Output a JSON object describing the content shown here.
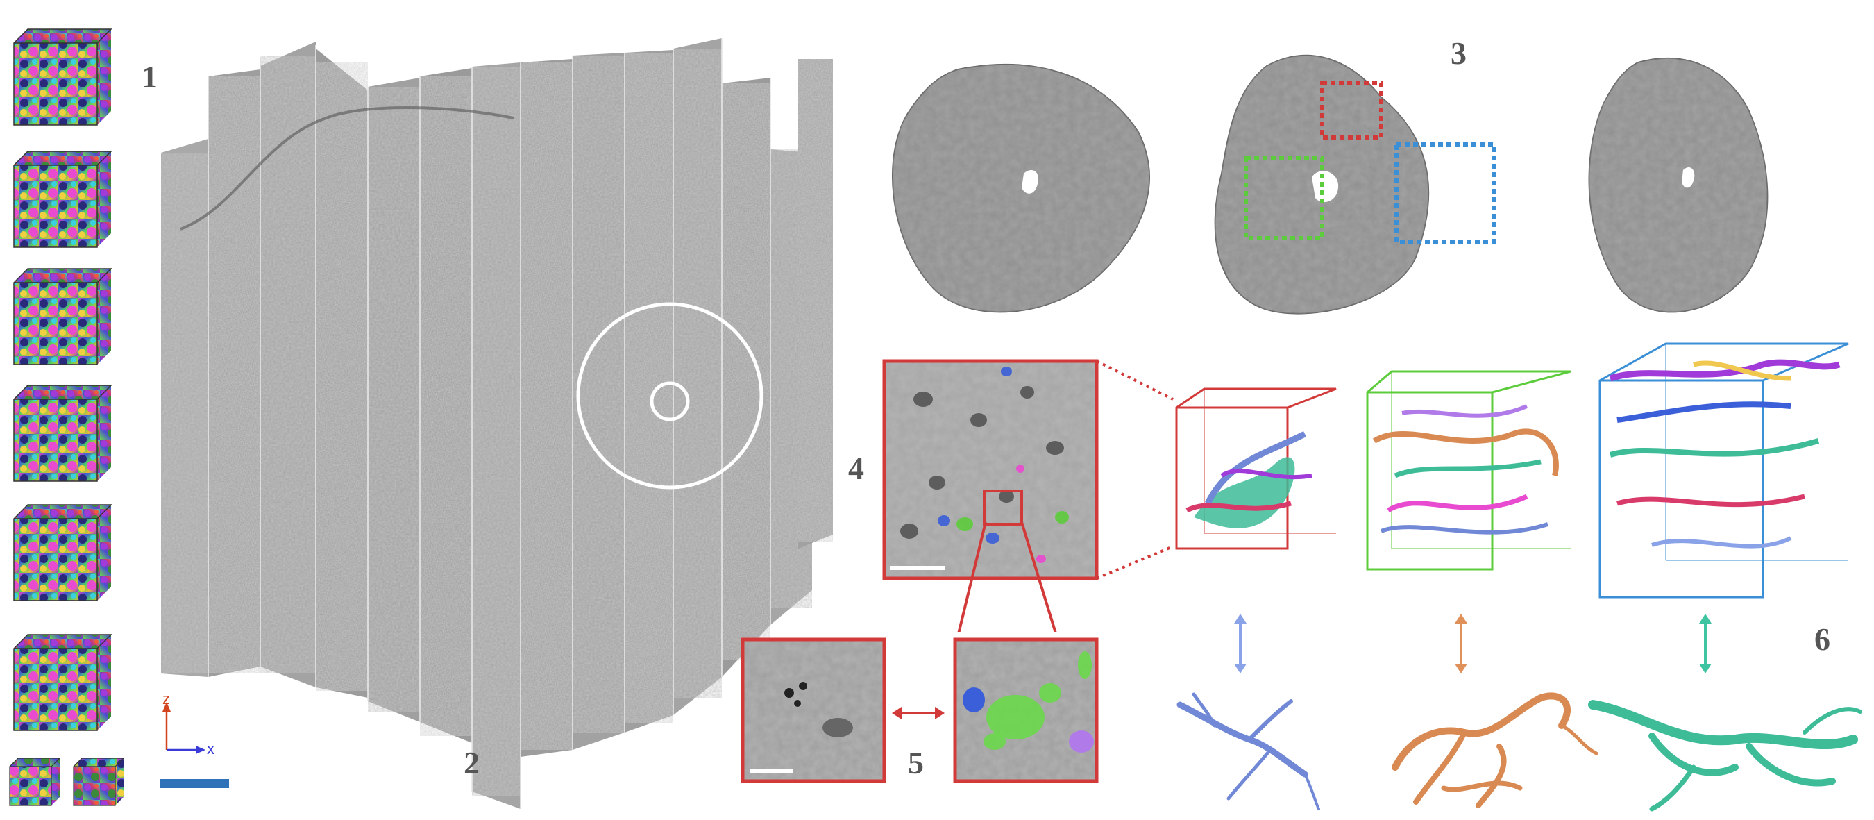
{
  "panel_labels": {
    "p1": "1",
    "p2": "2",
    "p3": "3",
    "p4": "4",
    "p5": "5",
    "p6": "6"
  },
  "axes": {
    "z": "z",
    "x": "x"
  },
  "colors": {
    "red_box": "#d23a3a",
    "green_box": "#5dcc3c",
    "blue_box": "#3a8fd6",
    "scale_bar": "#2f72b8",
    "arrow_blue": "#8aa2e8",
    "arrow_orange": "#e0915a",
    "arrow_teal": "#3fc4a2",
    "neuron_blue": "#7088d6",
    "neuron_orange": "#d98a52",
    "neuron_teal": "#3ebc98"
  }
}
